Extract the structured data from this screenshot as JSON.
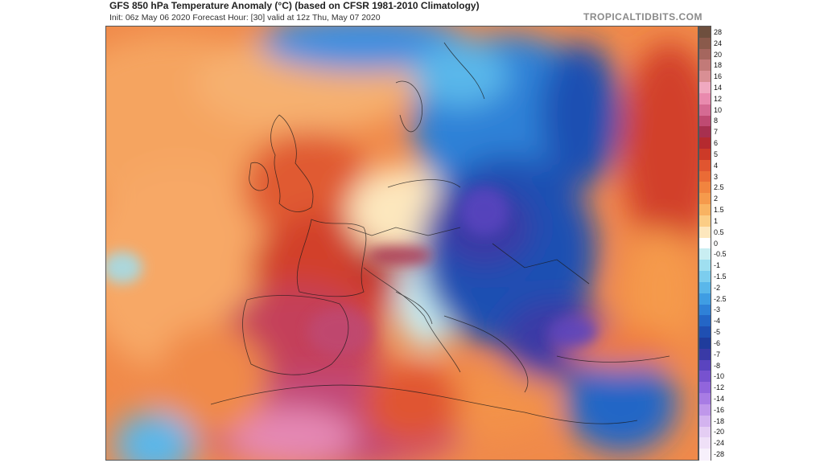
{
  "header": {
    "title": "GFS 850 hPa Temperature Anomaly (°C) (based on CFSR 1981-2010 Climatology)",
    "subtitle": "Init: 06z May 06 2020   Forecast Hour: [30]   valid at 12z Thu, May 07 2020",
    "brand": "TROPICALTIDBITS.COM"
  },
  "legend": {
    "levels": [
      {
        "label": "28",
        "color": "#6e4f3e"
      },
      {
        "label": "24",
        "color": "#8a5a4b"
      },
      {
        "label": "20",
        "color": "#a5665e"
      },
      {
        "label": "18",
        "color": "#c27a78"
      },
      {
        "label": "16",
        "color": "#d98f94"
      },
      {
        "label": "14",
        "color": "#f0a9c0"
      },
      {
        "label": "12",
        "color": "#e98aae"
      },
      {
        "label": "10",
        "color": "#d56a93"
      },
      {
        "label": "8",
        "color": "#bf4a72"
      },
      {
        "label": "7",
        "color": "#a7304f"
      },
      {
        "label": "6",
        "color": "#b52a2f"
      },
      {
        "label": "5",
        "color": "#cc3a28"
      },
      {
        "label": "4",
        "color": "#e05530"
      },
      {
        "label": "3",
        "color": "#ea6b36"
      },
      {
        "label": "2.5",
        "color": "#f1843f"
      },
      {
        "label": "2",
        "color": "#f59a4c"
      },
      {
        "label": "1.5",
        "color": "#f8b362"
      },
      {
        "label": "1",
        "color": "#fbcd85"
      },
      {
        "label": "0.5",
        "color": "#fde7bd"
      },
      {
        "label": "0",
        "color": "#ffffff"
      },
      {
        "label": "-0.5",
        "color": "#c9eef2"
      },
      {
        "label": "-1",
        "color": "#9fdff0"
      },
      {
        "label": "-1.5",
        "color": "#7ccdee"
      },
      {
        "label": "-2",
        "color": "#5ab7ea"
      },
      {
        "label": "-2.5",
        "color": "#3f9de3"
      },
      {
        "label": "-3",
        "color": "#2f81d7"
      },
      {
        "label": "-4",
        "color": "#2466c6"
      },
      {
        "label": "-5",
        "color": "#1f4fb2"
      },
      {
        "label": "-6",
        "color": "#1f3c9c"
      },
      {
        "label": "-7",
        "color": "#3a3aa6"
      },
      {
        "label": "-8",
        "color": "#5a44bf"
      },
      {
        "label": "-10",
        "color": "#7752cf"
      },
      {
        "label": "-12",
        "color": "#9165dc"
      },
      {
        "label": "-14",
        "color": "#a87ce4"
      },
      {
        "label": "-16",
        "color": "#bf97ea"
      },
      {
        "label": "-18",
        "color": "#d3b3ef"
      },
      {
        "label": "-20",
        "color": "#e4cdf3"
      },
      {
        "label": "-24",
        "color": "#efe0f7"
      },
      {
        "label": "-28",
        "color": "#f7f0fb"
      }
    ]
  }
}
